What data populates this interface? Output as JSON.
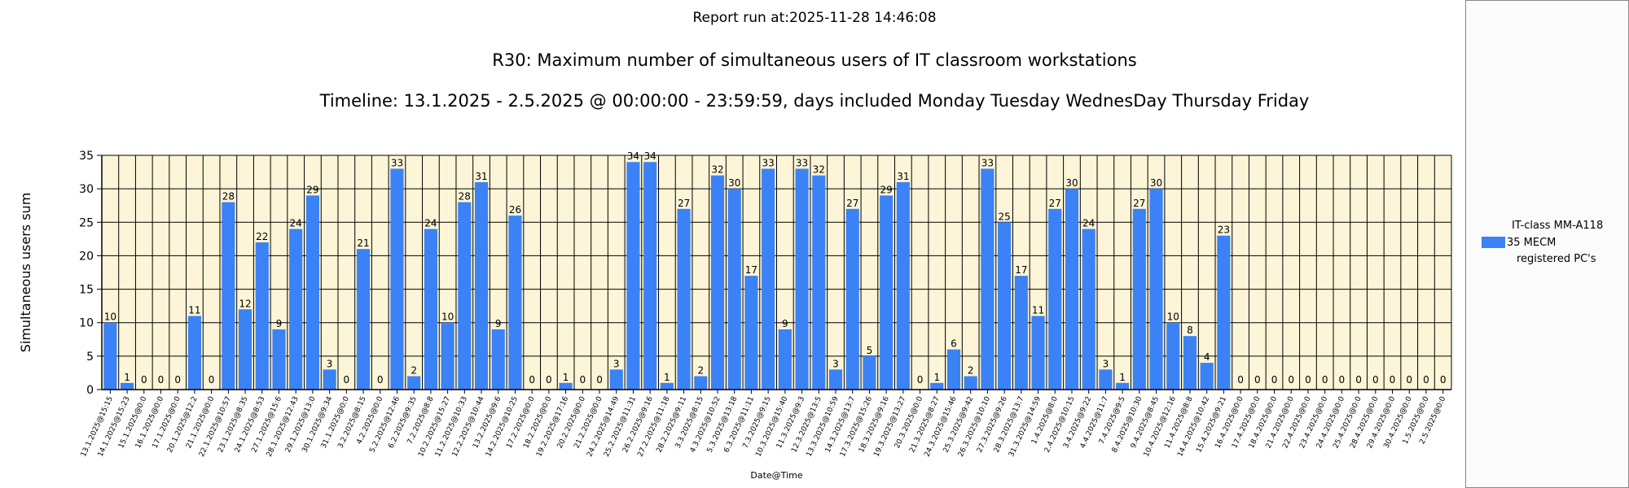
{
  "header": {
    "report_run": "Report run at:2025-11-28 14:46:08"
  },
  "colors": {
    "bar": "#3b82f6",
    "plot_background": "#fcf5d7",
    "grid": "#000000"
  },
  "legend": {
    "lines": [
      "IT-class MM-A118",
      "35 MECM",
      "registered PC's"
    ]
  },
  "chart_data": {
    "type": "bar",
    "title": "R30: Maximum number of simultaneous users of IT classroom workstations",
    "subtitle": "Timeline: 13.1.2025  - 2.5.2025  @  00:00:00 -  23:59:59, days included Monday Tuesday WednesDay Thursday Friday",
    "xlabel": "Date@Time",
    "ylabel": "Simultaneous users sum",
    "ylim": [
      0,
      35
    ],
    "yticks": [
      0,
      5,
      10,
      15,
      20,
      25,
      30,
      35
    ],
    "grid": true,
    "legend_position": "right",
    "series": [
      {
        "name": "IT-class MM-A118 35 MECM registered PC's"
      }
    ],
    "points": [
      {
        "x": "13.1.2025@15:15",
        "y": 10,
        "label": "10"
      },
      {
        "x": "14.1.2025@15:23",
        "y": 1,
        "label": "1"
      },
      {
        "x": "15.1.2025@0:0",
        "y": 0,
        "label": "0"
      },
      {
        "x": "16.1.2025@0:0",
        "y": 0,
        "label": "0"
      },
      {
        "x": "17.1.2025@0:0",
        "y": 0,
        "label": "0"
      },
      {
        "x": "20.1.2025@12:2",
        "y": 11,
        "label": "11"
      },
      {
        "x": "21.1.2025@0:0",
        "y": 0,
        "label": "0"
      },
      {
        "x": "22.1.2025@10:57",
        "y": 28,
        "label": "28"
      },
      {
        "x": "23.1.2025@8:35",
        "y": 12,
        "label": "12"
      },
      {
        "x": "24.1.2025@8:53",
        "y": 22,
        "label": "22"
      },
      {
        "x": "27.1.2025@15:6",
        "y": 9,
        "label": "9"
      },
      {
        "x": "28.1.2025@12:43",
        "y": 24,
        "label": "24"
      },
      {
        "x": "29.1.2025@13:0",
        "y": 29,
        "label": "29"
      },
      {
        "x": "30.1.2025@9:34",
        "y": 3,
        "label": "3"
      },
      {
        "x": "31.1.2025@0:0",
        "y": 0,
        "label": "0"
      },
      {
        "x": "3.2.2025@8:15",
        "y": 21,
        "label": "21"
      },
      {
        "x": "4.2.2025@0:0",
        "y": 0,
        "label": "0"
      },
      {
        "x": "5.2.2025@12:46",
        "y": 33,
        "label": "33"
      },
      {
        "x": "6.2.2025@9:35",
        "y": 2,
        "label": "2"
      },
      {
        "x": "7.2.2025@8:8",
        "y": 24,
        "label": "24"
      },
      {
        "x": "10.2.2025@15:27",
        "y": 10,
        "label": "10"
      },
      {
        "x": "11.2.2025@10:33",
        "y": 28,
        "label": "28"
      },
      {
        "x": "12.2.2025@10:44",
        "y": 31,
        "label": "31"
      },
      {
        "x": "13.2.2025@9:6",
        "y": 9,
        "label": "9"
      },
      {
        "x": "14.2.2025@10:25",
        "y": 26,
        "label": "26"
      },
      {
        "x": "17.2.2025@0:0",
        "y": 0,
        "label": "0"
      },
      {
        "x": "18.2.2025@0:0",
        "y": 0,
        "label": "0"
      },
      {
        "x": "19.2.2025@17:16",
        "y": 1,
        "label": "1"
      },
      {
        "x": "20.2.2025@0:0",
        "y": 0,
        "label": "0"
      },
      {
        "x": "21.2.2025@0:0",
        "y": 0,
        "label": "0"
      },
      {
        "x": "24.2.2025@14:49",
        "y": 3,
        "label": "3"
      },
      {
        "x": "25.2.2025@11:31",
        "y": 34,
        "label": "34"
      },
      {
        "x": "26.2.2025@9:16",
        "y": 34,
        "label": "34"
      },
      {
        "x": "27.2.2025@11:18",
        "y": 1,
        "label": "1"
      },
      {
        "x": "28.2.2025@9:11",
        "y": 27,
        "label": "27"
      },
      {
        "x": "3.3.2025@8:15",
        "y": 2,
        "label": "2"
      },
      {
        "x": "4.3.2025@10:52",
        "y": 32,
        "label": "32"
      },
      {
        "x": "5.3.2025@13:18",
        "y": 30,
        "label": "30"
      },
      {
        "x": "6.3.2025@11:11",
        "y": 17,
        "label": "17"
      },
      {
        "x": "7.3.2025@9:15",
        "y": 33,
        "label": "33"
      },
      {
        "x": "10.3.2025@15:40",
        "y": 9,
        "label": "9"
      },
      {
        "x": "11.3.2025@9:3",
        "y": 33,
        "label": "33"
      },
      {
        "x": "12.3.2025@13:5",
        "y": 32,
        "label": "32"
      },
      {
        "x": "13.3.2025@10:59",
        "y": 3,
        "label": "3"
      },
      {
        "x": "14.3.2025@13:7",
        "y": 27,
        "label": "27"
      },
      {
        "x": "17.3.2025@15:26",
        "y": 5,
        "label": "5"
      },
      {
        "x": "18.3.2025@9:16",
        "y": 29,
        "label": "29"
      },
      {
        "x": "19.3.2025@13:27",
        "y": 31,
        "label": "31"
      },
      {
        "x": "20.3.2025@0:0",
        "y": 0,
        "label": "0"
      },
      {
        "x": "21.3.2025@8:27",
        "y": 1,
        "label": "1"
      },
      {
        "x": "24.3.2025@15:46",
        "y": 6,
        "label": "6"
      },
      {
        "x": "25.3.2025@9:42",
        "y": 2,
        "label": "2"
      },
      {
        "x": "26.3.2025@10:10",
        "y": 33,
        "label": "33"
      },
      {
        "x": "27.3.2025@9:26",
        "y": 25,
        "label": "25"
      },
      {
        "x": "28.3.2025@13:7",
        "y": 17,
        "label": "17"
      },
      {
        "x": "31.3.2025@14:59",
        "y": 11,
        "label": "11"
      },
      {
        "x": "1.4.2025@8:0",
        "y": 27,
        "label": "27"
      },
      {
        "x": "2.4.2025@10:15",
        "y": 30,
        "label": "30"
      },
      {
        "x": "3.4.2025@9:22",
        "y": 24,
        "label": "24"
      },
      {
        "x": "4.4.2025@11:7",
        "y": 3,
        "label": "3"
      },
      {
        "x": "7.4.2025@9:5",
        "y": 1,
        "label": "1"
      },
      {
        "x": "8.4.2025@10:30",
        "y": 27,
        "label": "27"
      },
      {
        "x": "9.4.2025@8:45",
        "y": 30,
        "label": "30"
      },
      {
        "x": "10.4.2025@12:16",
        "y": 10,
        "label": "10"
      },
      {
        "x": "11.4.2025@8:8",
        "y": 8,
        "label": "8"
      },
      {
        "x": "14.4.2025@10:42",
        "y": 4,
        "label": "4"
      },
      {
        "x": "15.4.2025@9:21",
        "y": 23,
        "label": "23"
      },
      {
        "x": "16.4.2025@0:0",
        "y": 0,
        "label": "0"
      },
      {
        "x": "17.4.2025@0:0",
        "y": 0,
        "label": "0"
      },
      {
        "x": "18.4.2025@0:0",
        "y": 0,
        "label": "0"
      },
      {
        "x": "21.4.2025@0:0",
        "y": 0,
        "label": "0"
      },
      {
        "x": "22.4.2025@0:0",
        "y": 0,
        "label": "0"
      },
      {
        "x": "23.4.2025@0:0",
        "y": 0,
        "label": "0"
      },
      {
        "x": "24.4.2025@0:0",
        "y": 0,
        "label": "0"
      },
      {
        "x": "25.4.2025@0:0",
        "y": 0,
        "label": "0"
      },
      {
        "x": "28.4.2025@0:0",
        "y": 0,
        "label": "0"
      },
      {
        "x": "29.4.2025@0:0",
        "y": 0,
        "label": "0"
      },
      {
        "x": "30.4.2025@0:0",
        "y": 0,
        "label": "0"
      },
      {
        "x": "1.5.2025@0:0",
        "y": 0,
        "label": "0"
      },
      {
        "x": "2.5.2025@0:0",
        "y": 0,
        "label": "0"
      }
    ]
  }
}
